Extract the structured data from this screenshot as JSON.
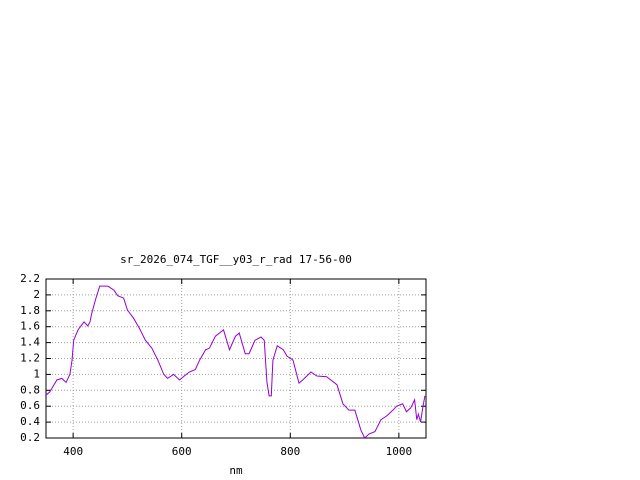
{
  "chart_data": {
    "type": "line",
    "title": "sr_2026_074_TGF__y03_r_rad 17-56-00",
    "x_label": "nm",
    "x": [
      350,
      357,
      370,
      379,
      387,
      394,
      398,
      401,
      409,
      420,
      427,
      431,
      434,
      442,
      449,
      464,
      475,
      482,
      493,
      500,
      511,
      522,
      533,
      545,
      556,
      567,
      574,
      585,
      596,
      603,
      614,
      625,
      633,
      644,
      651,
      662,
      677,
      688,
      699,
      706,
      717,
      724,
      735,
      746,
      752,
      757,
      761,
      765,
      768,
      776,
      787,
      794,
      805,
      816,
      823,
      838,
      849,
      867,
      886,
      897,
      908,
      919,
      930,
      937,
      945,
      956,
      967,
      978,
      989,
      996,
      1007,
      1014,
      1022,
      1029,
      1033,
      1036,
      1040,
      1044,
      1048
    ],
    "series": [
      {
        "color": "#9400d3",
        "values": [
          0.74,
          0.78,
          0.93,
          0.95,
          0.9,
          1.0,
          1.18,
          1.43,
          1.56,
          1.66,
          1.61,
          1.66,
          1.76,
          1.96,
          2.11,
          2.11,
          2.06,
          1.99,
          1.96,
          1.81,
          1.71,
          1.58,
          1.43,
          1.33,
          1.18,
          1.0,
          0.95,
          1.0,
          0.93,
          0.97,
          1.03,
          1.06,
          1.18,
          1.31,
          1.33,
          1.48,
          1.56,
          1.31,
          1.48,
          1.52,
          1.26,
          1.26,
          1.43,
          1.47,
          1.43,
          0.9,
          0.73,
          0.73,
          1.18,
          1.36,
          1.31,
          1.23,
          1.18,
          0.89,
          0.93,
          1.03,
          0.98,
          0.97,
          0.87,
          0.63,
          0.55,
          0.55,
          0.3,
          0.2,
          0.25,
          0.28,
          0.43,
          0.48,
          0.55,
          0.6,
          0.63,
          0.53,
          0.58,
          0.68,
          0.43,
          0.5,
          0.4,
          0.58,
          0.73
        ]
      }
    ],
    "xlim": [
      350,
      1050
    ],
    "xticks": [
      400,
      600,
      800,
      1000
    ],
    "ylim": [
      0.2,
      2.2
    ],
    "yticks": [
      0.2,
      0.4,
      0.6,
      0.8,
      1,
      1.2,
      1.4,
      1.6,
      1.8,
      2,
      2.2
    ],
    "grid": true
  }
}
